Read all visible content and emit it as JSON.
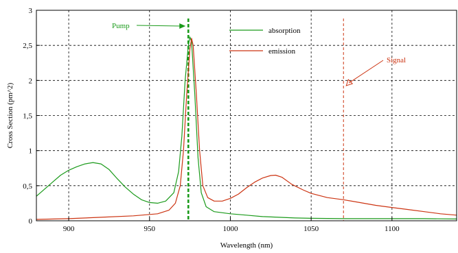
{
  "chart_data": {
    "type": "line",
    "xlabel": "Wavelength (nm)",
    "ylabel": "Cross Section (pm^2)",
    "xlim": [
      880,
      1140
    ],
    "ylim": [
      0,
      3
    ],
    "grid": true,
    "legend_position": "top-center",
    "x_ticks": [
      {
        "value": 900,
        "label": "900"
      },
      {
        "value": 950,
        "label": "950"
      },
      {
        "value": 1000,
        "label": "1000"
      },
      {
        "value": 1050,
        "label": "1050"
      },
      {
        "value": 1100,
        "label": "1100"
      }
    ],
    "y_ticks": [
      {
        "value": 0,
        "label": "0"
      },
      {
        "value": 0.5,
        "label": "0,5"
      },
      {
        "value": 1,
        "label": "1"
      },
      {
        "value": 1.5,
        "label": "1,5"
      },
      {
        "value": 2,
        "label": "2"
      },
      {
        "value": 2.5,
        "label": "2,5"
      },
      {
        "value": 3,
        "label": "3"
      }
    ],
    "series": [
      {
        "name": "absorption",
        "color": "#1a9a1a",
        "points": [
          [
            880,
            0.35
          ],
          [
            885,
            0.45
          ],
          [
            890,
            0.55
          ],
          [
            895,
            0.65
          ],
          [
            900,
            0.72
          ],
          [
            905,
            0.77
          ],
          [
            910,
            0.81
          ],
          [
            915,
            0.83
          ],
          [
            920,
            0.81
          ],
          [
            925,
            0.73
          ],
          [
            930,
            0.6
          ],
          [
            935,
            0.48
          ],
          [
            940,
            0.38
          ],
          [
            945,
            0.3
          ],
          [
            950,
            0.26
          ],
          [
            955,
            0.25
          ],
          [
            960,
            0.28
          ],
          [
            965,
            0.4
          ],
          [
            968,
            0.7
          ],
          [
            970,
            1.2
          ],
          [
            972,
            2.0
          ],
          [
            974,
            2.5
          ],
          [
            975,
            2.62
          ],
          [
            976,
            2.55
          ],
          [
            978,
            1.8
          ],
          [
            980,
            0.9
          ],
          [
            982,
            0.4
          ],
          [
            985,
            0.2
          ],
          [
            990,
            0.13
          ],
          [
            1000,
            0.1
          ],
          [
            1010,
            0.08
          ],
          [
            1020,
            0.06
          ],
          [
            1030,
            0.05
          ],
          [
            1040,
            0.04
          ],
          [
            1050,
            0.035
          ],
          [
            1070,
            0.03
          ],
          [
            1100,
            0.03
          ],
          [
            1120,
            0.03
          ],
          [
            1140,
            0.025
          ]
        ]
      },
      {
        "name": "emission",
        "color": "#cc3311",
        "points": [
          [
            880,
            0.02
          ],
          [
            900,
            0.03
          ],
          [
            920,
            0.05
          ],
          [
            940,
            0.07
          ],
          [
            955,
            0.1
          ],
          [
            962,
            0.15
          ],
          [
            966,
            0.25
          ],
          [
            969,
            0.5
          ],
          [
            971,
            1.0
          ],
          [
            973,
            1.8
          ],
          [
            975,
            2.45
          ],
          [
            976,
            2.6
          ],
          [
            977,
            2.5
          ],
          [
            979,
            1.8
          ],
          [
            981,
            1.0
          ],
          [
            983,
            0.5
          ],
          [
            986,
            0.33
          ],
          [
            990,
            0.28
          ],
          [
            995,
            0.28
          ],
          [
            1000,
            0.32
          ],
          [
            1005,
            0.38
          ],
          [
            1010,
            0.47
          ],
          [
            1015,
            0.55
          ],
          [
            1020,
            0.61
          ],
          [
            1025,
            0.645
          ],
          [
            1028,
            0.65
          ],
          [
            1032,
            0.62
          ],
          [
            1038,
            0.52
          ],
          [
            1045,
            0.44
          ],
          [
            1050,
            0.39
          ],
          [
            1060,
            0.33
          ],
          [
            1070,
            0.3
          ],
          [
            1080,
            0.26
          ],
          [
            1090,
            0.22
          ],
          [
            1100,
            0.19
          ],
          [
            1110,
            0.16
          ],
          [
            1120,
            0.13
          ],
          [
            1130,
            0.1
          ],
          [
            1140,
            0.08
          ]
        ]
      }
    ],
    "markers": [
      {
        "name": "pump-line",
        "x": 974,
        "color": "#1a9a1a",
        "style": "thick-dashed"
      },
      {
        "name": "signal-line",
        "x": 1070,
        "color": "#cc3311",
        "style": "thin-dashed"
      }
    ],
    "annotations": [
      {
        "name": "pump-annotation",
        "text": "Pump",
        "color": "#1a9a1a"
      },
      {
        "name": "signal-annotation",
        "text": "Signal",
        "color": "#cc3311"
      }
    ]
  }
}
